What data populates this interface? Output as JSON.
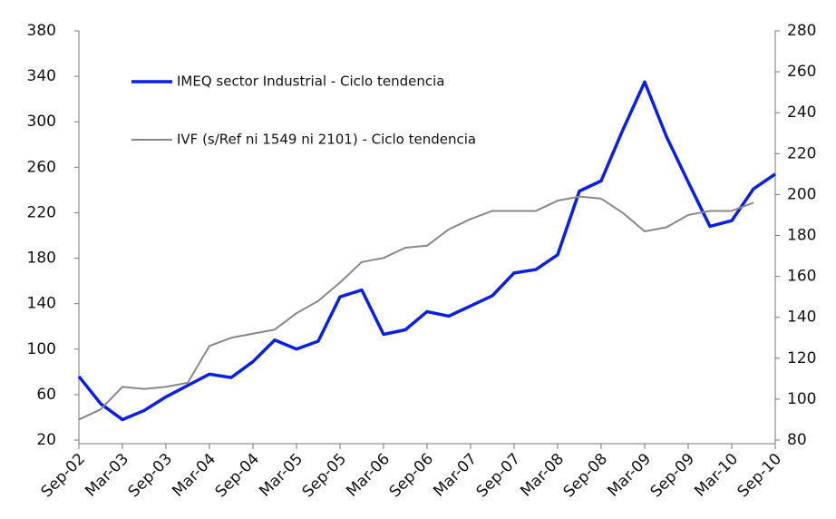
{
  "chart_data": {
    "type": "line",
    "categories": [
      "Sep-02",
      null,
      "Mar-03",
      null,
      "Sep-03",
      null,
      "Mar-04",
      null,
      "Sep-04",
      null,
      "Mar-05",
      null,
      "Sep-05",
      null,
      "Mar-06",
      null,
      "Sep-06",
      null,
      "Mar-07",
      null,
      "Sep-07",
      null,
      "Mar-08",
      null,
      "Sep-08",
      null,
      "Mar-09",
      null,
      "Sep-09",
      null,
      "Mar-10",
      null,
      "Sep-10"
    ],
    "series": [
      {
        "name": "IMEQ sector Industrial - Ciclo tendencia",
        "color": "#0a1fe6",
        "axis": "y",
        "values": [
          76,
          52,
          38,
          46,
          58,
          68,
          78,
          75,
          89,
          108,
          100,
          107,
          146,
          152,
          113,
          117,
          133,
          129,
          138,
          147,
          167,
          170,
          183,
          239,
          248,
          293,
          335,
          287,
          247,
          208,
          213,
          241,
          254
        ]
      },
      {
        "name": "IVF (s/Ref ni 1549 ni 2101) - Ciclo tendencia",
        "color": "#888888",
        "axis": "y2",
        "values": [
          90,
          95,
          106,
          105,
          106,
          108,
          126,
          130,
          132,
          134,
          142,
          148,
          157,
          167,
          169,
          174,
          175,
          183,
          188,
          192,
          192,
          192,
          197,
          199,
          198,
          191,
          182,
          184,
          190,
          192,
          192,
          196,
          null
        ]
      }
    ],
    "ylim": [
      20,
      380
    ],
    "yticks": [
      20,
      60,
      100,
      140,
      180,
      220,
      260,
      300,
      340,
      380
    ],
    "y2lim": [
      80,
      280
    ],
    "y2ticks": [
      80,
      100,
      120,
      140,
      160,
      180,
      200,
      220,
      240,
      260,
      280
    ]
  }
}
